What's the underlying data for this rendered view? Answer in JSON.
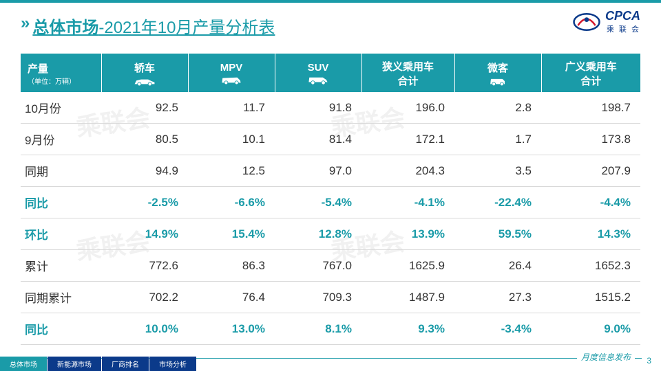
{
  "colors": {
    "accent": "#1a9ba8",
    "navy": "#0b3a8a",
    "text": "#333333",
    "grid": "#d9d9d9",
    "background": "#ffffff",
    "watermark": "#e6e6e6"
  },
  "logo": {
    "text": "CPCA",
    "cn": "乘 联 会"
  },
  "title": {
    "main": "总体市场",
    "sub": "-2021年10月产量分析表"
  },
  "watermark_text": "乘联会",
  "table": {
    "header_label": "产量",
    "header_unit": "（单位：万辆）",
    "columns": [
      "轿车",
      "MPV",
      "SUV",
      "狭义乘用车合计",
      "微客",
      "广义乘用车合计"
    ],
    "col_has_icon": [
      true,
      true,
      true,
      false,
      true,
      false
    ],
    "rows": [
      {
        "label": "10月份",
        "values": [
          "92.5",
          "11.7",
          "91.8",
          "196.0",
          "2.8",
          "198.7"
        ],
        "highlight": false
      },
      {
        "label": "9月份",
        "values": [
          "80.5",
          "10.1",
          "81.4",
          "172.1",
          "1.7",
          "173.8"
        ],
        "highlight": false
      },
      {
        "label": "同期",
        "values": [
          "94.9",
          "12.5",
          "97.0",
          "204.3",
          "3.5",
          "207.9"
        ],
        "highlight": false
      },
      {
        "label": "同比",
        "values": [
          "-2.5%",
          "-6.6%",
          "-5.4%",
          "-4.1%",
          "-22.4%",
          "-4.4%"
        ],
        "highlight": true
      },
      {
        "label": "环比",
        "values": [
          "14.9%",
          "15.4%",
          "12.8%",
          "13.9%",
          "59.5%",
          "14.3%"
        ],
        "highlight": true
      },
      {
        "label": "累计",
        "values": [
          "772.6",
          "86.3",
          "767.0",
          "1625.9",
          "26.4",
          "1652.3"
        ],
        "highlight": false
      },
      {
        "label": "同期累计",
        "values": [
          "702.2",
          "76.4",
          "709.3",
          "1487.9",
          "27.3",
          "1515.2"
        ],
        "highlight": false
      },
      {
        "label": "同比",
        "values": [
          "10.0%",
          "13.0%",
          "8.1%",
          "9.3%",
          "-3.4%",
          "9.0%"
        ],
        "highlight": true
      }
    ]
  },
  "footer": {
    "text": "月度信息发布",
    "page": "3"
  },
  "tabs": [
    "总体市场",
    "新能源市场",
    "厂商排名",
    "市场分析"
  ],
  "active_tab": 0
}
